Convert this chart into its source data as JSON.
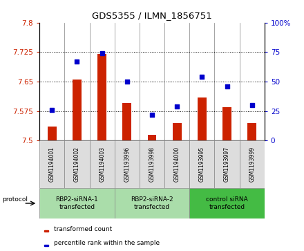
{
  "title": "GDS5355 / ILMN_1856751",
  "samples": [
    "GSM1194001",
    "GSM1194002",
    "GSM1194003",
    "GSM1193996",
    "GSM1193998",
    "GSM1194000",
    "GSM1193995",
    "GSM1193997",
    "GSM1193999"
  ],
  "bar_values": [
    7.535,
    7.655,
    7.72,
    7.595,
    7.515,
    7.545,
    7.61,
    7.585,
    7.545
  ],
  "percentile_values": [
    26,
    67,
    74,
    50,
    22,
    29,
    54,
    46,
    30
  ],
  "ylim_left": [
    7.5,
    7.8
  ],
  "ylim_right": [
    0,
    100
  ],
  "yticks_left": [
    7.5,
    7.575,
    7.65,
    7.725,
    7.8
  ],
  "yticks_right": [
    0,
    25,
    50,
    75,
    100
  ],
  "bar_color": "#cc2200",
  "scatter_color": "#0000cc",
  "group_ranges": [
    [
      0,
      3
    ],
    [
      3,
      6
    ],
    [
      6,
      9
    ]
  ],
  "group_labels": [
    "RBP2-siRNA-1\ntransfected",
    "RBP2-siRNA-2\ntransfected",
    "control siRNA\ntransfected"
  ],
  "group_colors": [
    "#aaddaa",
    "#aaddaa",
    "#44bb44"
  ],
  "protocol_label": "protocol",
  "legend_bar_label": "transformed count",
  "legend_scatter_label": "percentile rank within the sample",
  "sample_box_color": "#dddddd",
  "bar_width": 0.35
}
